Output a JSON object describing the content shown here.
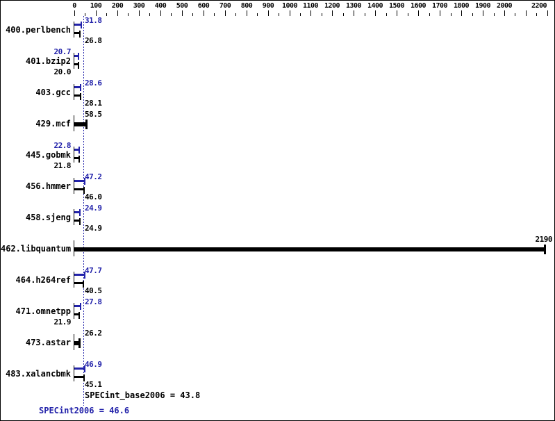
{
  "chart_data": {
    "type": "bar",
    "orientation": "horizontal",
    "title": "",
    "x_axis": {
      "min": 0,
      "max": 2200,
      "major_tick": 100,
      "minor_tick": 50,
      "tick_labels": [
        "0",
        "100",
        "200",
        "300",
        "400",
        "500",
        "600",
        "700",
        "800",
        "900",
        "1000",
        "1100",
        "1200",
        "1300",
        "1400",
        "1500",
        "1600",
        "1700",
        "1800",
        "1900",
        "2000",
        "2200"
      ]
    },
    "benchmarks": [
      {
        "name": "400.perlbench",
        "peak": "31.8",
        "base": "26.8",
        "peak_side": "right",
        "base_side": "right"
      },
      {
        "name": "401.bzip2",
        "peak": "20.7",
        "base": "20.0",
        "peak_side": "left",
        "base_side": "left"
      },
      {
        "name": "403.gcc",
        "peak": "28.6",
        "base": "28.1",
        "peak_side": "right",
        "base_side": "right"
      },
      {
        "name": "429.mcf",
        "single": true,
        "value": "58.5",
        "value_side": "right"
      },
      {
        "name": "445.gobmk",
        "peak": "22.8",
        "base": "21.8",
        "peak_side": "left",
        "base_side": "left"
      },
      {
        "name": "456.hmmer",
        "peak": "47.2",
        "base": "46.0",
        "peak_side": "right",
        "base_side": "right"
      },
      {
        "name": "458.sjeng",
        "peak": "24.9",
        "base": "24.9",
        "peak_side": "right",
        "base_side": "right"
      },
      {
        "name": "462.libquantum",
        "single": true,
        "value": "2190",
        "value_side": "bar_end"
      },
      {
        "name": "464.h264ref",
        "peak": "47.7",
        "base": "40.5",
        "peak_side": "right",
        "base_side": "right"
      },
      {
        "name": "471.omnetpp",
        "peak": "27.8",
        "base": "21.9",
        "peak_side": "right",
        "base_side": "left"
      },
      {
        "name": "473.astar",
        "single": true,
        "value": "26.2",
        "value_side": "right"
      },
      {
        "name": "483.xalancbmk",
        "peak": "46.9",
        "base": "45.1",
        "peak_side": "right",
        "base_side": "right"
      }
    ],
    "specint_base2006": "43.8",
    "specint2006": "46.6",
    "reference_line_value": 43.8,
    "legend_position": "none",
    "grid": false
  },
  "footer": {
    "base_text": "SPECint_base2006 = 43.8",
    "peak_text": "SPECint2006 = 46.6"
  },
  "colors": {
    "peak": "#2222aa",
    "base": "#000000",
    "dotted_line": "#2222aa",
    "background": "#ffffff"
  }
}
